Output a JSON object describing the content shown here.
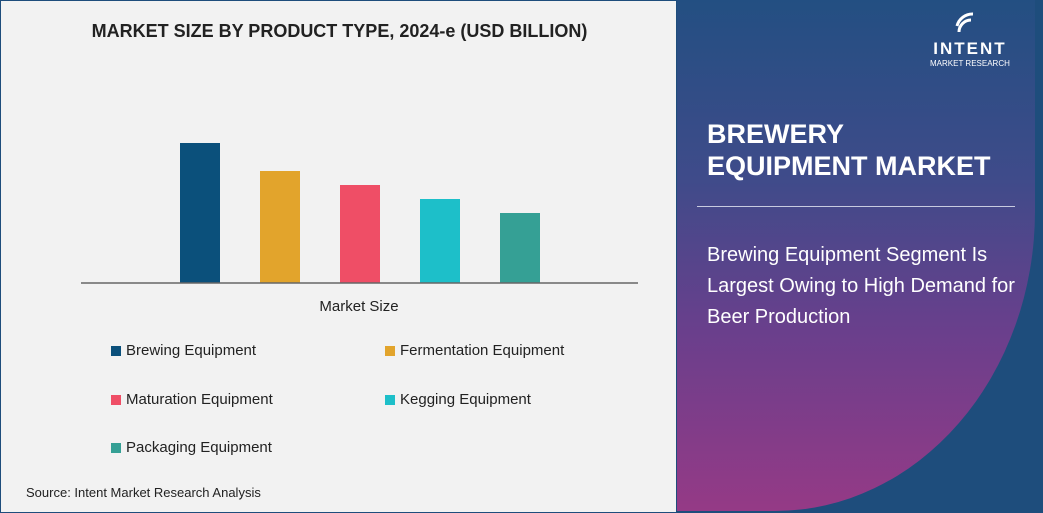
{
  "chart_data": {
    "type": "bar",
    "title": "MARKET SIZE BY PRODUCT TYPE, 2024-e (USD BILLION)",
    "xlabel": "Market Size",
    "ylabel": "",
    "categories": [
      "Brewing Equipment",
      "Fermentation Equipment",
      "Maturation Equipment",
      "Kegging Equipment",
      "Packaging Equipment"
    ],
    "values": [
      1.0,
      0.8,
      0.7,
      0.6,
      0.5
    ],
    "colors": [
      "#0b507b",
      "#e2a42c",
      "#ef4e66",
      "#1dbfc9",
      "#35a095"
    ],
    "ylim": [
      0,
      1
    ],
    "grid": false,
    "legend": "bottom"
  },
  "source": "Source: Intent Market Research Analysis",
  "logo": {
    "name": "INTENT",
    "sub": "MARKET RESEARCH",
    "tm": "™"
  },
  "report_title": "BREWERY EQUIPMENT MARKET",
  "summary": "Brewing Equipment Segment Is Largest Owing to High Demand for Beer Production"
}
